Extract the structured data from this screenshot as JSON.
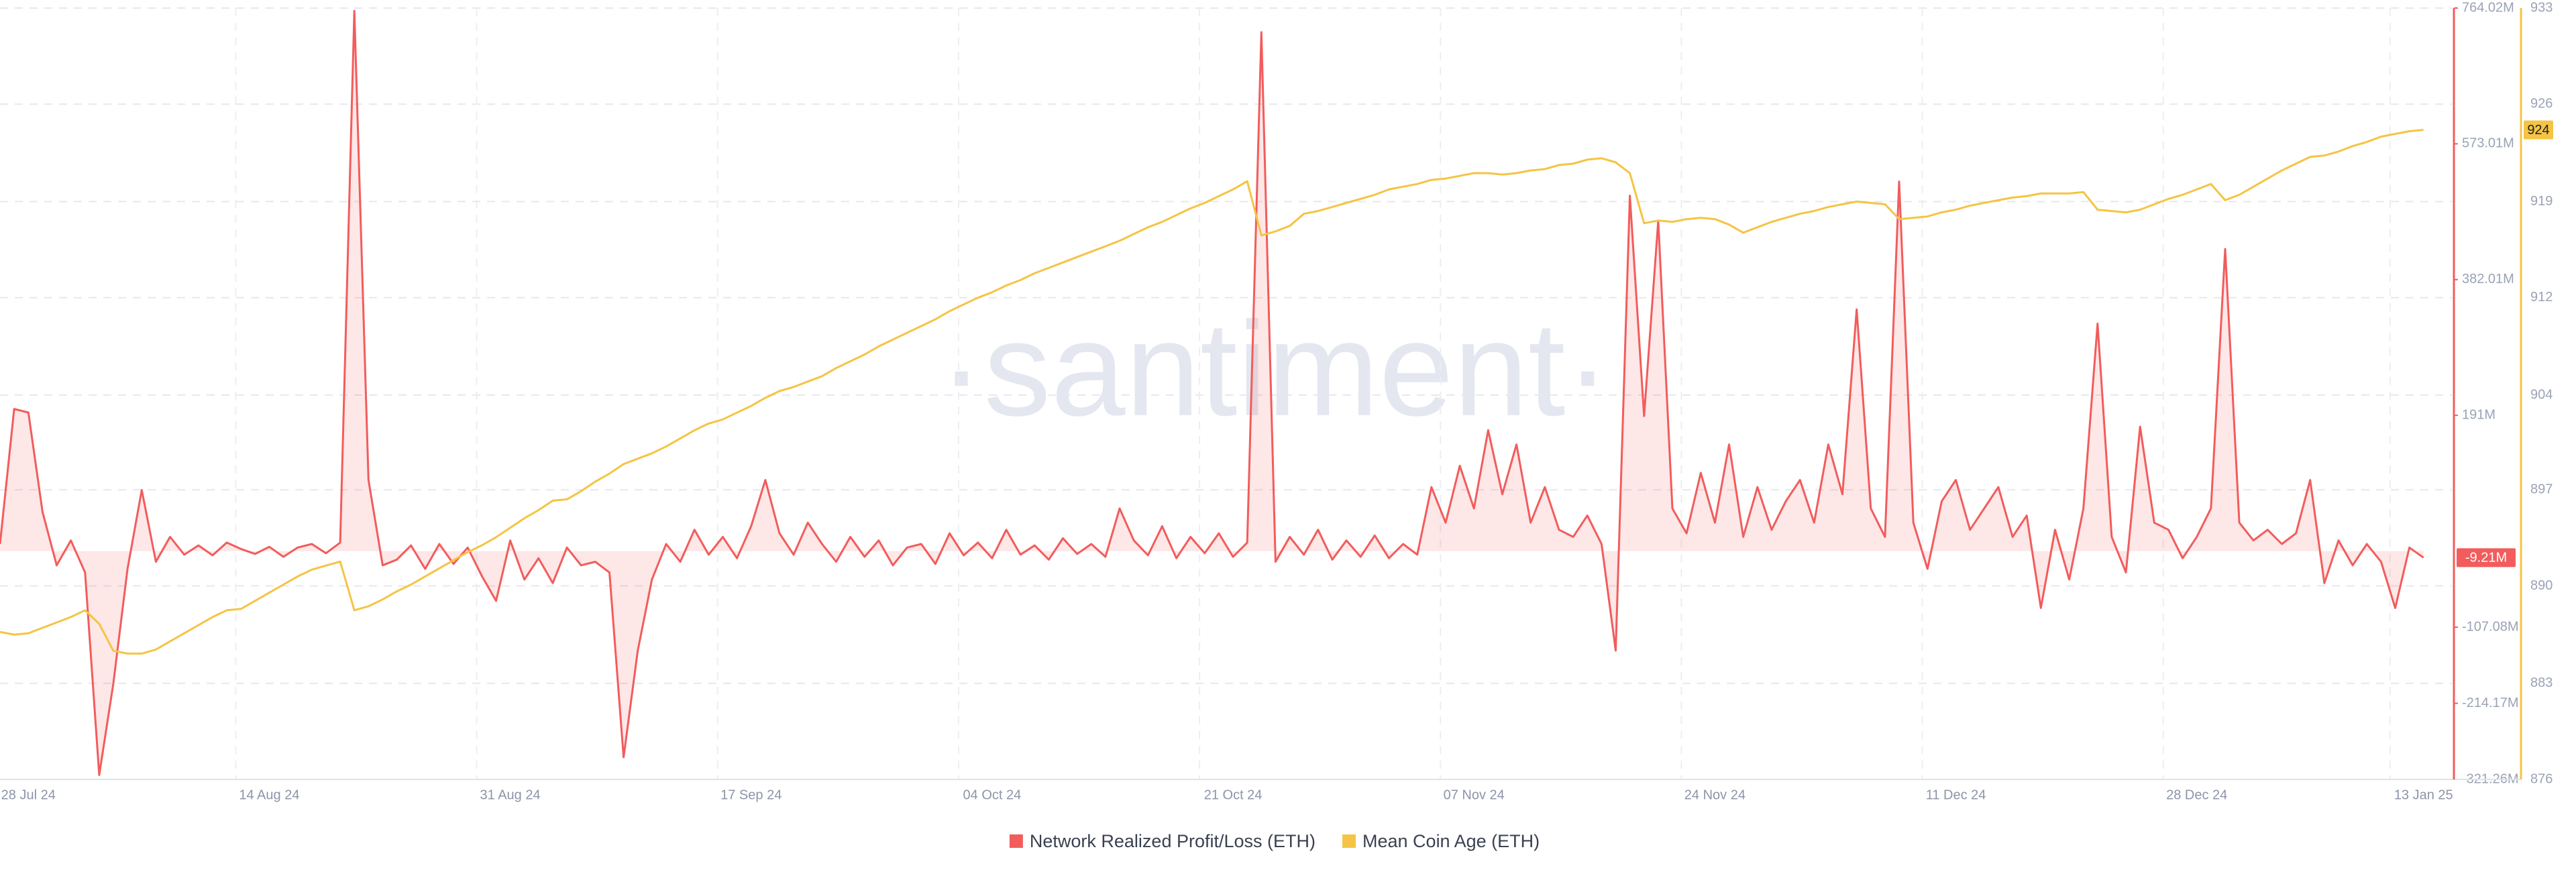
{
  "chart_data": {
    "type": "line",
    "watermark": "·santiment·",
    "x": [
      "2024-07-26",
      "2024-07-27",
      "2024-07-28",
      "2024-07-29",
      "2024-07-30",
      "2024-07-31",
      "2024-08-01",
      "2024-08-02",
      "2024-08-03",
      "2024-08-04",
      "2024-08-05",
      "2024-08-06",
      "2024-08-07",
      "2024-08-08",
      "2024-08-09",
      "2024-08-10",
      "2024-08-11",
      "2024-08-12",
      "2024-08-13",
      "2024-08-14",
      "2024-08-15",
      "2024-08-16",
      "2024-08-17",
      "2024-08-18",
      "2024-08-19",
      "2024-08-20",
      "2024-08-21",
      "2024-08-22",
      "2024-08-23",
      "2024-08-24",
      "2024-08-25",
      "2024-08-26",
      "2024-08-27",
      "2024-08-28",
      "2024-08-29",
      "2024-08-30",
      "2024-08-31",
      "2024-09-01",
      "2024-09-02",
      "2024-09-03",
      "2024-09-04",
      "2024-09-05",
      "2024-09-06",
      "2024-09-07",
      "2024-09-08",
      "2024-09-09",
      "2024-09-10",
      "2024-09-11",
      "2024-09-12",
      "2024-09-13",
      "2024-09-14",
      "2024-09-15",
      "2024-09-16",
      "2024-09-17",
      "2024-09-18",
      "2024-09-19",
      "2024-09-20",
      "2024-09-21",
      "2024-09-22",
      "2024-09-23",
      "2024-09-24",
      "2024-09-25",
      "2024-09-26",
      "2024-09-27",
      "2024-09-28",
      "2024-09-29",
      "2024-09-30",
      "2024-10-01",
      "2024-10-02",
      "2024-10-03",
      "2024-10-04",
      "2024-10-05",
      "2024-10-06",
      "2024-10-07",
      "2024-10-08",
      "2024-10-09",
      "2024-10-10",
      "2024-10-11",
      "2024-10-12",
      "2024-10-13",
      "2024-10-14",
      "2024-10-15",
      "2024-10-16",
      "2024-10-17",
      "2024-10-18",
      "2024-10-19",
      "2024-10-20",
      "2024-10-21",
      "2024-10-22",
      "2024-10-23",
      "2024-10-24",
      "2024-10-25",
      "2024-10-26",
      "2024-10-27",
      "2024-10-28",
      "2024-10-29",
      "2024-10-30",
      "2024-10-31",
      "2024-11-01",
      "2024-11-02",
      "2024-11-03",
      "2024-11-04",
      "2024-11-05",
      "2024-11-06",
      "2024-11-07",
      "2024-11-08",
      "2024-11-09",
      "2024-11-10",
      "2024-11-11",
      "2024-11-12",
      "2024-11-13",
      "2024-11-14",
      "2024-11-15",
      "2024-11-16",
      "2024-11-17",
      "2024-11-18",
      "2024-11-19",
      "2024-11-20",
      "2024-11-21",
      "2024-11-22",
      "2024-11-23",
      "2024-11-24",
      "2024-11-25",
      "2024-11-26",
      "2024-11-27",
      "2024-11-28",
      "2024-11-29",
      "2024-11-30",
      "2024-12-01",
      "2024-12-02",
      "2024-12-03",
      "2024-12-04",
      "2024-12-05",
      "2024-12-06",
      "2024-12-07",
      "2024-12-08",
      "2024-12-09",
      "2024-12-10",
      "2024-12-11",
      "2024-12-12",
      "2024-12-13",
      "2024-12-14",
      "2024-12-15",
      "2024-12-16",
      "2024-12-17",
      "2024-12-18",
      "2024-12-19",
      "2024-12-20",
      "2024-12-21",
      "2024-12-22",
      "2024-12-23",
      "2024-12-24",
      "2024-12-25",
      "2024-12-26",
      "2024-12-27",
      "2024-12-28",
      "2024-12-29",
      "2024-12-30",
      "2024-12-31",
      "2025-01-01",
      "2025-01-02",
      "2025-01-03",
      "2025-01-04",
      "2025-01-05",
      "2025-01-06",
      "2025-01-07",
      "2025-01-08",
      "2025-01-09",
      "2025-01-10",
      "2025-01-11",
      "2025-01-12",
      "2025-01-13"
    ],
    "xlim": [
      "2024-07-26",
      "2025-01-15"
    ],
    "xticks": [
      {
        "value": "2024-07-28",
        "label": "28 Jul 24"
      },
      {
        "value": "2024-08-14",
        "label": "14 Aug 24"
      },
      {
        "value": "2024-08-31",
        "label": "31 Aug 24"
      },
      {
        "value": "2024-09-17",
        "label": "17 Sep 24"
      },
      {
        "value": "2024-10-04",
        "label": "04 Oct 24"
      },
      {
        "value": "2024-10-21",
        "label": "21 Oct 24"
      },
      {
        "value": "2024-11-07",
        "label": "07 Nov 24"
      },
      {
        "value": "2024-11-24",
        "label": "24 Nov 24"
      },
      {
        "value": "2024-12-11",
        "label": "11 Dec 24"
      },
      {
        "value": "2024-12-28",
        "label": "28 Dec 24"
      },
      {
        "value": "2025-01-13",
        "label": "13 Jan 25"
      }
    ],
    "ylim": [
      -321.26,
      764.02
    ],
    "yticks": [
      {
        "value": -321.26,
        "label": "-321.26M"
      },
      {
        "value": -214.17,
        "label": "-214.17M"
      },
      {
        "value": -107.08,
        "label": "-107.08M"
      },
      {
        "value": 191,
        "label": "191M"
      },
      {
        "value": 382.01,
        "label": "382.01M"
      },
      {
        "value": 573.01,
        "label": "573.01M"
      },
      {
        "value": 764.02,
        "label": "764.02M"
      }
    ],
    "y2lim": [
      876,
      933
    ],
    "y2ticks": [
      876,
      {
        "value": 883.1,
        "label": "883"
      },
      {
        "value": 890.3,
        "label": "890"
      },
      {
        "value": 897.4,
        "label": "897"
      },
      {
        "value": 904.4,
        "label": "904"
      },
      {
        "value": 911.6,
        "label": "912"
      },
      {
        "value": 918.7,
        "label": "919"
      },
      {
        "value": 925.9,
        "label": "926"
      },
      933
    ],
    "grid": true,
    "series": [
      {
        "name": "Network Realized Profit/Loss (ETH)",
        "color": "#f25c5c",
        "axis": "y",
        "area": true,
        "current_label": "-9.21M",
        "values": [
          10,
          200,
          195,
          55,
          -20,
          15,
          -30,
          -315,
          -186,
          -25,
          86,
          -15,
          20,
          -5,
          8,
          -6,
          12,
          3,
          -4,
          6,
          -8,
          5,
          10,
          -3,
          12,
          760,
          100,
          -20,
          -12,
          8,
          -25,
          10,
          -18,
          5,
          -35,
          -70,
          15,
          -40,
          -10,
          -45,
          5,
          -20,
          -15,
          -30,
          -290,
          -140,
          -40,
          10,
          -15,
          30,
          -5,
          20,
          -10,
          35,
          100,
          25,
          -5,
          40,
          10,
          -15,
          20,
          -8,
          15,
          -20,
          5,
          10,
          -18,
          25,
          -6,
          12,
          -10,
          30,
          -5,
          8,
          -12,
          18,
          -4,
          10,
          -8,
          60,
          15,
          -6,
          35,
          -10,
          20,
          -3,
          25,
          -8,
          12,
          730,
          -15,
          20,
          -5,
          30,
          -12,
          15,
          -8,
          22,
          -10,
          10,
          -5,
          90,
          40,
          120,
          60,
          170,
          80,
          150,
          40,
          90,
          30,
          20,
          50,
          10,
          -140,
          500,
          190,
          465,
          60,
          25,
          110,
          40,
          150,
          20,
          90,
          30,
          70,
          100,
          40,
          150,
          80,
          340,
          60,
          20,
          520,
          40,
          -25,
          70,
          100,
          30,
          60,
          90,
          20,
          50,
          -80,
          30,
          -40,
          60,
          320,
          20,
          -30,
          175,
          40,
          30,
          -10,
          20,
          60,
          425,
          40,
          15,
          30,
          10,
          25,
          100,
          -45,
          15,
          -20,
          10,
          -15,
          -80,
          5,
          -9.21
        ]
      },
      {
        "name": "Mean Coin Age (ETH)",
        "color": "#f5c444",
        "axis": "y2",
        "current_label": "924",
        "values": [
          886.9,
          886.7,
          886.8,
          887.2,
          887.6,
          888.0,
          888.5,
          887.5,
          885.5,
          885.3,
          885.3,
          885.6,
          886.2,
          886.8,
          887.4,
          888.0,
          888.5,
          888.6,
          889.2,
          889.8,
          890.4,
          891.0,
          891.5,
          891.8,
          892.1,
          888.5,
          888.8,
          889.3,
          889.9,
          890.4,
          891.0,
          891.6,
          892.2,
          892.8,
          893.3,
          893.9,
          894.6,
          895.3,
          895.9,
          896.6,
          896.7,
          897.3,
          898.0,
          898.6,
          899.3,
          899.7,
          900.1,
          900.6,
          901.2,
          901.8,
          902.3,
          902.6,
          903.1,
          903.6,
          904.2,
          904.7,
          905.0,
          905.4,
          905.8,
          906.4,
          906.9,
          907.4,
          908.0,
          908.5,
          909.0,
          909.5,
          910.0,
          910.6,
          911.1,
          911.6,
          912.0,
          912.5,
          912.9,
          913.4,
          913.8,
          914.2,
          914.6,
          915.0,
          915.4,
          915.8,
          916.3,
          916.8,
          917.2,
          917.7,
          918.2,
          918.6,
          919.1,
          919.6,
          920.2,
          916.2,
          916.5,
          916.9,
          917.8,
          918.0,
          918.3,
          918.6,
          918.9,
          919.2,
          919.6,
          919.8,
          920.0,
          920.3,
          920.4,
          920.6,
          920.8,
          920.8,
          920.7,
          920.8,
          921.0,
          921.1,
          921.4,
          921.5,
          921.8,
          921.9,
          921.6,
          920.8,
          917.1,
          917.3,
          917.2,
          917.4,
          917.5,
          917.4,
          917.0,
          916.4,
          916.8,
          917.2,
          917.5,
          917.8,
          918.0,
          918.3,
          918.5,
          918.7,
          918.6,
          918.5,
          917.4,
          917.5,
          917.6,
          917.9,
          918.1,
          918.4,
          918.6,
          918.8,
          919.0,
          919.1,
          919.3,
          919.3,
          919.3,
          919.4,
          918.1,
          918.0,
          917.9,
          918.1,
          918.5,
          918.9,
          919.2,
          919.6,
          920.0,
          918.8,
          919.2,
          919.8,
          920.4,
          921.0,
          921.5,
          922.0,
          922.1,
          922.4,
          922.8,
          923.1,
          923.5,
          923.7,
          923.9,
          924
        ]
      }
    ]
  }
}
